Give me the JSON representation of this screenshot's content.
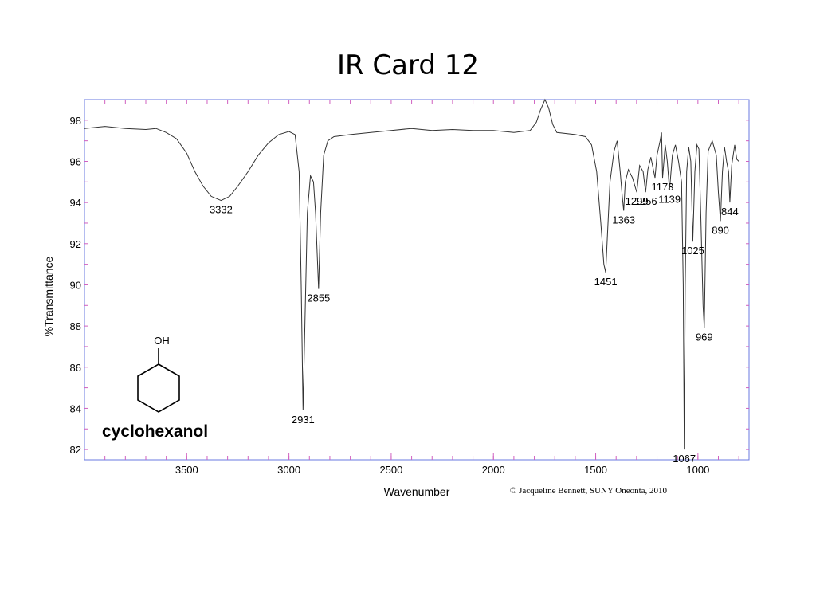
{
  "slide": {
    "title": "IR Card 12",
    "credit": "© Jacqueline Bennett, SUNY Oneonta, 2010"
  },
  "molecule": {
    "name": "cyclohexanol",
    "substituent_label": "OH"
  },
  "colors": {
    "frame": "#6a78e0",
    "trace": "#333333",
    "minor_tick": "#d060c0",
    "text": "#000000"
  },
  "chart_data": {
    "type": "line",
    "title": "",
    "xlabel": "Wavenumber",
    "ylabel": "%Transmittance",
    "xlim": [
      4000,
      750
    ],
    "ylim": [
      81.5,
      99
    ],
    "x_ticks": [
      3500,
      3000,
      2500,
      2000,
      1500,
      1000
    ],
    "y_ticks": [
      82,
      84,
      86,
      88,
      90,
      92,
      94,
      96,
      98
    ],
    "series": [
      {
        "name": "cyclohexanol IR spectrum",
        "points": [
          [
            4000,
            97.6
          ],
          [
            3900,
            97.7
          ],
          [
            3800,
            97.6
          ],
          [
            3700,
            97.55
          ],
          [
            3650,
            97.6
          ],
          [
            3600,
            97.4
          ],
          [
            3550,
            97.1
          ],
          [
            3500,
            96.4
          ],
          [
            3460,
            95.5
          ],
          [
            3420,
            94.8
          ],
          [
            3380,
            94.3
          ],
          [
            3332,
            94.1
          ],
          [
            3290,
            94.3
          ],
          [
            3250,
            94.8
          ],
          [
            3200,
            95.5
          ],
          [
            3150,
            96.3
          ],
          [
            3100,
            96.9
          ],
          [
            3050,
            97.3
          ],
          [
            3000,
            97.45
          ],
          [
            2970,
            97.3
          ],
          [
            2950,
            95.5
          ],
          [
            2940,
            90.0
          ],
          [
            2931,
            83.9
          ],
          [
            2922,
            88.0
          ],
          [
            2910,
            93.5
          ],
          [
            2895,
            95.3
          ],
          [
            2880,
            95.0
          ],
          [
            2870,
            93.5
          ],
          [
            2855,
            89.8
          ],
          [
            2845,
            93.5
          ],
          [
            2830,
            96.3
          ],
          [
            2810,
            97.0
          ],
          [
            2780,
            97.2
          ],
          [
            2700,
            97.3
          ],
          [
            2600,
            97.4
          ],
          [
            2500,
            97.5
          ],
          [
            2400,
            97.6
          ],
          [
            2300,
            97.5
          ],
          [
            2200,
            97.55
          ],
          [
            2100,
            97.5
          ],
          [
            2000,
            97.5
          ],
          [
            1900,
            97.4
          ],
          [
            1820,
            97.5
          ],
          [
            1790,
            97.9
          ],
          [
            1770,
            98.5
          ],
          [
            1748,
            99.0
          ],
          [
            1730,
            98.6
          ],
          [
            1710,
            97.8
          ],
          [
            1690,
            97.4
          ],
          [
            1600,
            97.3
          ],
          [
            1550,
            97.2
          ],
          [
            1520,
            96.8
          ],
          [
            1495,
            95.5
          ],
          [
            1475,
            93.0
          ],
          [
            1460,
            91.0
          ],
          [
            1451,
            90.6
          ],
          [
            1442,
            92.5
          ],
          [
            1430,
            95.0
          ],
          [
            1410,
            96.5
          ],
          [
            1395,
            97.0
          ],
          [
            1380,
            95.5
          ],
          [
            1370,
            94.3
          ],
          [
            1363,
            93.6
          ],
          [
            1355,
            95.0
          ],
          [
            1340,
            95.6
          ],
          [
            1320,
            95.2
          ],
          [
            1299,
            94.5
          ],
          [
            1285,
            95.8
          ],
          [
            1268,
            95.5
          ],
          [
            1256,
            94.5
          ],
          [
            1245,
            95.6
          ],
          [
            1230,
            96.2
          ],
          [
            1210,
            95.2
          ],
          [
            1200,
            96.3
          ],
          [
            1185,
            97.0
          ],
          [
            1178,
            97.4
          ],
          [
            1173,
            95.2
          ],
          [
            1160,
            96.8
          ],
          [
            1150,
            96.0
          ],
          [
            1139,
            94.6
          ],
          [
            1125,
            96.3
          ],
          [
            1110,
            96.8
          ],
          [
            1095,
            96.0
          ],
          [
            1080,
            95.0
          ],
          [
            1072,
            90.0
          ],
          [
            1067,
            82.0
          ],
          [
            1062,
            90.0
          ],
          [
            1055,
            95.5
          ],
          [
            1045,
            96.7
          ],
          [
            1035,
            96.0
          ],
          [
            1025,
            92.1
          ],
          [
            1015,
            95.5
          ],
          [
            1005,
            96.8
          ],
          [
            995,
            96.6
          ],
          [
            985,
            93.0
          ],
          [
            975,
            89.0
          ],
          [
            969,
            87.9
          ],
          [
            960,
            93.5
          ],
          [
            950,
            96.5
          ],
          [
            930,
            97.0
          ],
          [
            910,
            96.3
          ],
          [
            900,
            94.5
          ],
          [
            890,
            93.1
          ],
          [
            880,
            95.5
          ],
          [
            870,
            96.7
          ],
          [
            860,
            96.0
          ],
          [
            850,
            95.5
          ],
          [
            844,
            94.0
          ],
          [
            835,
            95.8
          ],
          [
            820,
            96.8
          ],
          [
            810,
            96.1
          ],
          [
            800,
            96.0
          ]
        ]
      }
    ],
    "annotations": [
      {
        "label": "3332",
        "x": 3332,
        "y": 94.1
      },
      {
        "label": "2931",
        "x": 2931,
        "y": 83.9
      },
      {
        "label": "2855",
        "x": 2855,
        "y": 89.8
      },
      {
        "label": "1451",
        "x": 1451,
        "y": 90.6
      },
      {
        "label": "1363",
        "x": 1363,
        "y": 93.6
      },
      {
        "label": "1299",
        "x": 1299,
        "y": 94.5
      },
      {
        "label": "1256",
        "x": 1256,
        "y": 94.5
      },
      {
        "label": "1173",
        "x": 1173,
        "y": 95.2
      },
      {
        "label": "1139",
        "x": 1139,
        "y": 94.6
      },
      {
        "label": "1067",
        "x": 1067,
        "y": 82.0
      },
      {
        "label": "1025",
        "x": 1025,
        "y": 92.1
      },
      {
        "label": "969",
        "x": 969,
        "y": 87.9
      },
      {
        "label": "890",
        "x": 890,
        "y": 93.1
      },
      {
        "label": "844",
        "x": 844,
        "y": 94.0
      }
    ]
  }
}
